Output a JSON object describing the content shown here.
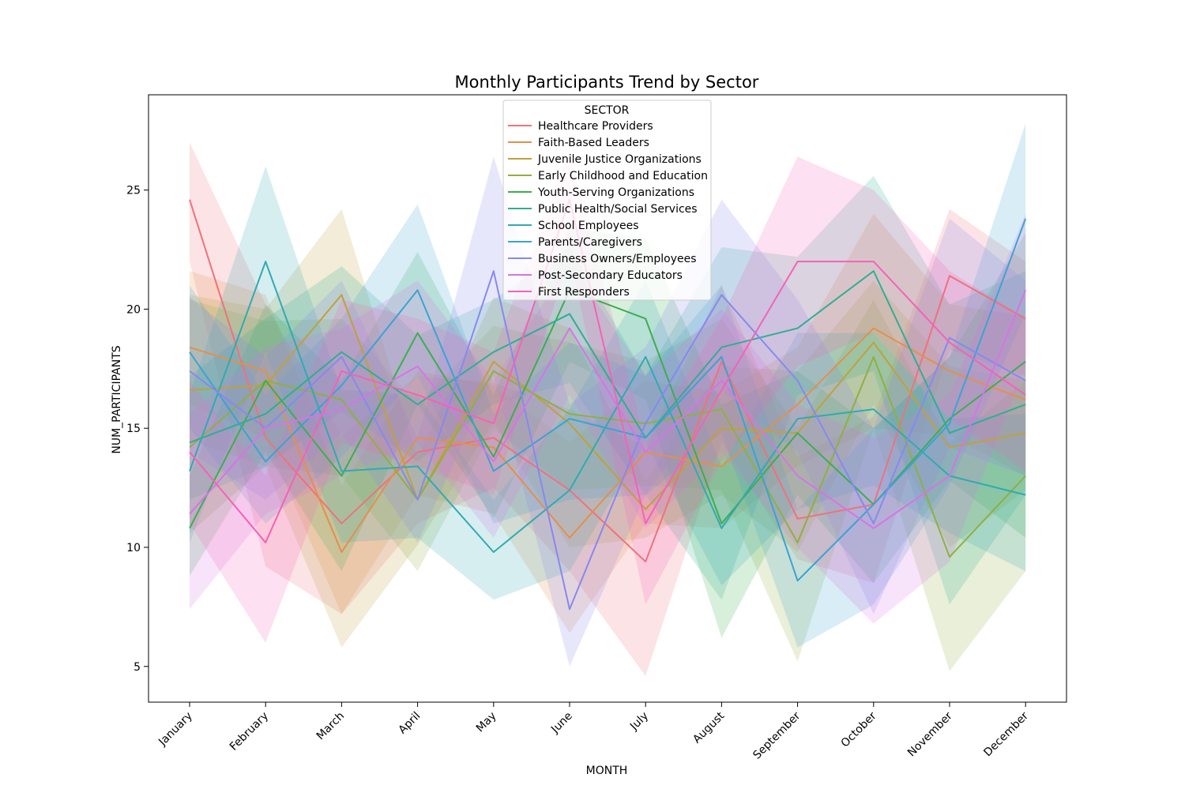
{
  "chart_data": {
    "type": "line",
    "title": "Monthly Participants Trend by Sector",
    "xlabel": "MONTH",
    "ylabel": "NUM_PARTICIPANTS",
    "ylim": [
      3.5,
      29.0
    ],
    "yticks": [
      5,
      10,
      15,
      20,
      25
    ],
    "categories": [
      "January",
      "February",
      "March",
      "April",
      "May",
      "June",
      "July",
      "August",
      "September",
      "October",
      "November",
      "December"
    ],
    "legend": {
      "title": "SECTOR",
      "placement": "top-center"
    },
    "grid": false,
    "series": [
      {
        "name": "Healthcare Providers",
        "color": "#f0717c",
        "values": [
          24.6,
          14.6,
          11.0,
          14.0,
          14.6,
          12.4,
          9.4,
          17.8,
          11.2,
          11.8,
          21.4,
          19.6
        ],
        "lower": [
          22.0,
          9.2,
          7.2,
          11.0,
          12.5,
          9.0,
          4.6,
          14.4,
          9.5,
          8.5,
          18.3,
          17.2
        ],
        "upper": [
          27.0,
          20.2,
          14.7,
          17.2,
          16.9,
          15.8,
          14.2,
          21.0,
          13.8,
          15.5,
          24.2,
          22.0
        ]
      },
      {
        "name": "Faith-Based Leaders",
        "color": "#e48f4c",
        "values": [
          18.4,
          17.4,
          9.8,
          14.6,
          14.2,
          10.4,
          14.0,
          13.4,
          16.0,
          19.2,
          17.4,
          16.2
        ],
        "lower": [
          16.0,
          14.6,
          7.2,
          12.2,
          11.4,
          6.4,
          11.0,
          10.8,
          13.4,
          15.0,
          14.7,
          13.0
        ],
        "upper": [
          21.6,
          20.6,
          12.6,
          17.4,
          16.8,
          14.4,
          17.0,
          16.5,
          18.4,
          24.0,
          20.2,
          19.7
        ]
      },
      {
        "name": "Juvenile Justice Organizations",
        "color": "#c0a13b",
        "values": [
          16.6,
          16.8,
          20.6,
          12.0,
          17.8,
          15.2,
          11.6,
          15.0,
          14.8,
          18.6,
          14.2,
          14.8
        ],
        "lower": [
          14.5,
          13.4,
          5.8,
          10.1,
          15.3,
          10.0,
          10.4,
          12.2,
          9.8,
          16.0,
          10.0,
          12.4
        ],
        "upper": [
          20.6,
          20.0,
          24.2,
          13.8,
          20.5,
          19.2,
          12.8,
          17.6,
          17.4,
          21.2,
          17.6,
          17.0
        ]
      },
      {
        "name": "Early Childhood and Education",
        "color": "#8fb03f",
        "values": [
          14.2,
          17.0,
          16.2,
          12.0,
          17.4,
          15.6,
          15.2,
          15.8,
          10.2,
          18.0,
          9.6,
          13.0
        ],
        "lower": [
          10.6,
          13.4,
          13.0,
          9.0,
          15.0,
          12.4,
          12.6,
          12.4,
          5.2,
          15.0,
          4.8,
          9.0
        ],
        "upper": [
          20.4,
          19.5,
          19.6,
          16.0,
          19.3,
          18.6,
          17.8,
          19.6,
          15.0,
          20.4,
          14.4,
          17.0
        ]
      },
      {
        "name": "Youth-Serving Organizations",
        "color": "#3cae4f",
        "values": [
          10.8,
          17.0,
          13.0,
          19.0,
          13.8,
          20.8,
          19.6,
          11.0,
          14.8,
          11.8,
          15.4,
          17.8
        ],
        "lower": [
          8.8,
          14.0,
          9.0,
          16.0,
          11.2,
          17.8,
          16.2,
          6.2,
          12.2,
          8.5,
          12.8,
          10.4
        ],
        "upper": [
          13.0,
          20.2,
          17.0,
          22.4,
          16.4,
          23.4,
          23.0,
          16.0,
          17.4,
          15.0,
          18.0,
          23.2
        ]
      },
      {
        "name": "Public Health/Social Services",
        "color": "#2fae93",
        "values": [
          14.4,
          15.6,
          18.2,
          16.0,
          18.2,
          19.8,
          14.6,
          18.4,
          19.2,
          21.6,
          14.8,
          16.0
        ],
        "lower": [
          12.0,
          13.4,
          15.7,
          13.6,
          16.0,
          16.9,
          12.2,
          7.8,
          16.4,
          17.4,
          7.6,
          12.2
        ],
        "upper": [
          17.2,
          19.6,
          21.8,
          18.9,
          20.4,
          22.6,
          17.2,
          22.6,
          22.2,
          25.6,
          20.2,
          21.6
        ]
      },
      {
        "name": "School Employees",
        "color": "#31aab2",
        "values": [
          13.2,
          22.0,
          13.2,
          13.4,
          9.8,
          12.4,
          18.0,
          10.8,
          15.4,
          15.8,
          13.0,
          12.2
        ],
        "lower": [
          10.2,
          18.2,
          10.2,
          10.4,
          7.8,
          9.0,
          14.4,
          8.4,
          11.6,
          12.6,
          10.6,
          9.0
        ],
        "upper": [
          16.4,
          26.0,
          16.6,
          16.4,
          12.0,
          15.8,
          21.2,
          13.4,
          19.0,
          19.0,
          15.4,
          15.6
        ]
      },
      {
        "name": "Parents/Caregivers",
        "color": "#3aa3d4",
        "values": [
          18.2,
          13.6,
          16.8,
          20.8,
          13.2,
          15.4,
          14.6,
          18.0,
          8.6,
          11.8,
          15.2,
          23.8
        ],
        "lower": [
          15.0,
          11.0,
          13.8,
          17.2,
          11.0,
          12.0,
          12.2,
          14.8,
          5.8,
          7.6,
          12.6,
          19.8
        ],
        "upper": [
          21.0,
          16.4,
          19.6,
          24.4,
          15.6,
          18.6,
          17.2,
          21.0,
          11.6,
          15.0,
          18.0,
          27.8
        ]
      },
      {
        "name": "Business Owners/Employees",
        "color": "#8689ef",
        "values": [
          17.4,
          15.0,
          18.0,
          12.0,
          21.6,
          7.4,
          15.2,
          20.6,
          17.0,
          11.0,
          18.8,
          17.0
        ],
        "lower": [
          14.0,
          12.0,
          14.8,
          10.2,
          17.2,
          5.0,
          12.2,
          16.6,
          14.0,
          7.2,
          14.2,
          13.0
        ],
        "upper": [
          20.5,
          18.0,
          21.2,
          14.6,
          26.4,
          16.0,
          18.4,
          24.6,
          20.4,
          15.0,
          23.8,
          21.2
        ]
      },
      {
        "name": "Post-Secondary Educators",
        "color": "#d674e6",
        "values": [
          11.4,
          15.0,
          15.8,
          17.6,
          13.6,
          19.2,
          14.0,
          17.0,
          13.0,
          10.8,
          13.0,
          20.8
        ],
        "lower": [
          7.4,
          11.4,
          13.0,
          14.4,
          10.4,
          16.4,
          10.8,
          14.0,
          10.0,
          6.8,
          9.4,
          17.6
        ],
        "upper": [
          15.6,
          18.4,
          19.2,
          21.2,
          17.0,
          22.0,
          17.2,
          20.0,
          16.0,
          14.6,
          16.4,
          24.0
        ]
      },
      {
        "name": "First Responders",
        "color": "#f462b8",
        "values": [
          14.0,
          10.2,
          17.4,
          16.4,
          15.2,
          24.6,
          11.0,
          16.6,
          22.0,
          22.0,
          18.6,
          16.4
        ],
        "lower": [
          11.0,
          6.0,
          14.4,
          13.4,
          12.2,
          22.2,
          7.6,
          13.6,
          17.6,
          19.0,
          15.4,
          13.2
        ],
        "upper": [
          17.0,
          13.0,
          20.4,
          19.6,
          18.2,
          26.6,
          14.4,
          19.6,
          26.4,
          25.0,
          21.6,
          19.6
        ]
      }
    ]
  }
}
